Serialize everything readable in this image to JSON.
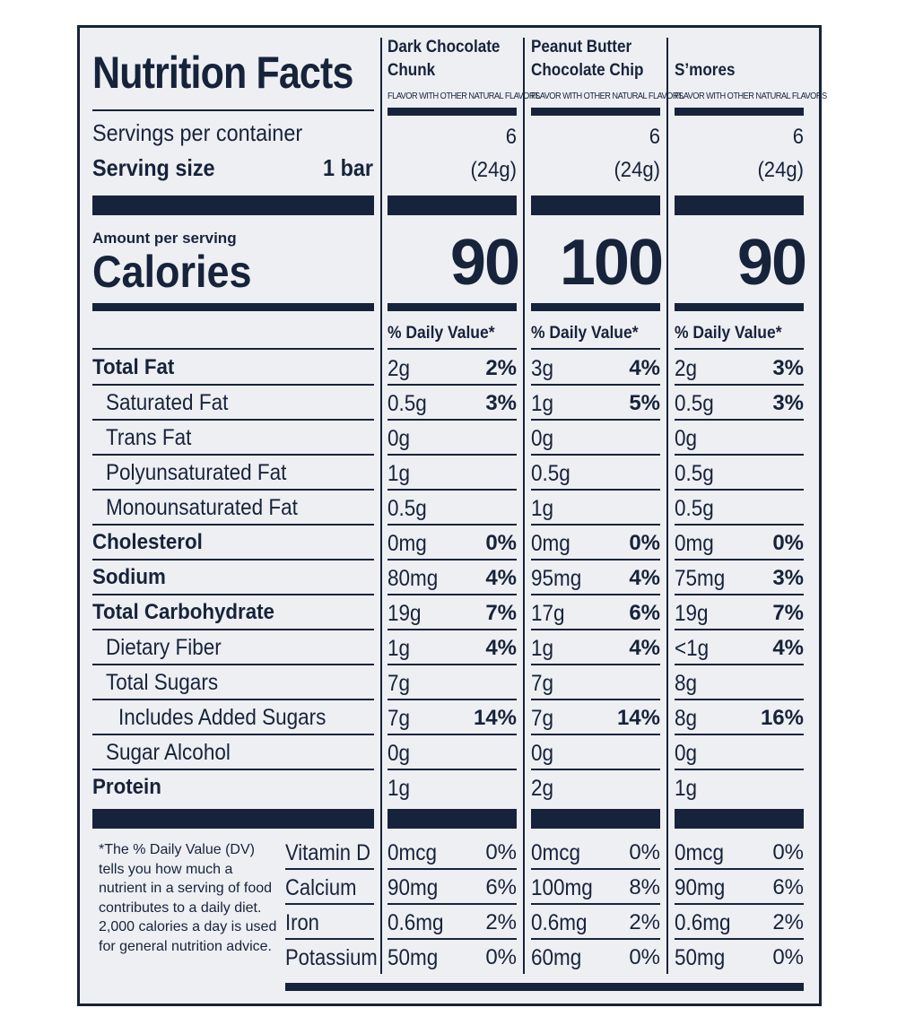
{
  "header": {
    "title": "Nutrition Facts",
    "servings_label": "Servings per container",
    "serving_size_label": "Serving size",
    "serving_size_value": "1 bar",
    "amount_per_serving": "Amount per serving",
    "calories_label": "Calories",
    "daily_value_header": "% Daily Value*"
  },
  "products": [
    {
      "line1": "Dark Chocolate",
      "line2": "Chunk",
      "flavor_note": "FLAVOR WITH OTHER NATURAL FLAVORS",
      "servings": "6",
      "serving_grams": "(24g)",
      "calories": "90"
    },
    {
      "line1": "Peanut Butter",
      "line2": "Chocolate Chip",
      "flavor_note": "FLAVOR WITH OTHER NATURAL FLAVORS",
      "servings": "6",
      "serving_grams": "(24g)",
      "calories": "100"
    },
    {
      "line1": "",
      "line2": "S’mores",
      "flavor_note": "FLAVOR WITH OTHER NATURAL FLAVORS",
      "servings": "6",
      "serving_grams": "(24g)",
      "calories": "90"
    }
  ],
  "nutrients": [
    {
      "label": "Total Fat",
      "bold": true,
      "indent": 0,
      "values": [
        [
          "2g",
          "2%"
        ],
        [
          "3g",
          "4%"
        ],
        [
          "2g",
          "3%"
        ]
      ]
    },
    {
      "label": "Saturated Fat",
      "bold": false,
      "indent": 1,
      "values": [
        [
          "0.5g",
          "3%"
        ],
        [
          "1g",
          "5%"
        ],
        [
          "0.5g",
          "3%"
        ]
      ]
    },
    {
      "label": "Trans Fat",
      "bold": false,
      "indent": 1,
      "values": [
        [
          "0g",
          ""
        ],
        [
          "0g",
          ""
        ],
        [
          "0g",
          ""
        ]
      ]
    },
    {
      "label": "Polyunsaturated Fat",
      "bold": false,
      "indent": 1,
      "values": [
        [
          "1g",
          ""
        ],
        [
          "0.5g",
          ""
        ],
        [
          "0.5g",
          ""
        ]
      ]
    },
    {
      "label": "Monounsaturated Fat",
      "bold": false,
      "indent": 1,
      "values": [
        [
          "0.5g",
          ""
        ],
        [
          "1g",
          ""
        ],
        [
          "0.5g",
          ""
        ]
      ]
    },
    {
      "label": "Cholesterol",
      "bold": true,
      "indent": 0,
      "values": [
        [
          "0mg",
          "0%"
        ],
        [
          "0mg",
          "0%"
        ],
        [
          "0mg",
          "0%"
        ]
      ]
    },
    {
      "label": "Sodium",
      "bold": true,
      "indent": 0,
      "values": [
        [
          "80mg",
          "4%"
        ],
        [
          "95mg",
          "4%"
        ],
        [
          "75mg",
          "3%"
        ]
      ]
    },
    {
      "label": "Total Carbohydrate",
      "bold": true,
      "indent": 0,
      "values": [
        [
          "19g",
          "7%"
        ],
        [
          "17g",
          "6%"
        ],
        [
          "19g",
          "7%"
        ]
      ]
    },
    {
      "label": "Dietary Fiber",
      "bold": false,
      "indent": 1,
      "values": [
        [
          "1g",
          "4%"
        ],
        [
          "1g",
          "4%"
        ],
        [
          "<1g",
          "4%"
        ]
      ]
    },
    {
      "label": "Total Sugars",
      "bold": false,
      "indent": 1,
      "values": [
        [
          "7g",
          ""
        ],
        [
          "7g",
          ""
        ],
        [
          "8g",
          ""
        ]
      ]
    },
    {
      "label": "Includes Added Sugars",
      "bold": false,
      "indent": 2,
      "values": [
        [
          "7g",
          "14%"
        ],
        [
          "7g",
          "14%"
        ],
        [
          "8g",
          "16%"
        ]
      ]
    },
    {
      "label": "Sugar Alcohol",
      "bold": false,
      "indent": 1,
      "values": [
        [
          "0g",
          ""
        ],
        [
          "0g",
          ""
        ],
        [
          "0g",
          ""
        ]
      ]
    },
    {
      "label": "Protein",
      "bold": true,
      "indent": 0,
      "values": [
        [
          "1g",
          ""
        ],
        [
          "2g",
          ""
        ],
        [
          "1g",
          ""
        ]
      ]
    }
  ],
  "vitamins": [
    {
      "label": "Vitamin D",
      "values": [
        [
          "0mcg",
          "0%"
        ],
        [
          "0mcg",
          "0%"
        ],
        [
          "0mcg",
          "0%"
        ]
      ]
    },
    {
      "label": "Calcium",
      "values": [
        [
          "90mg",
          "6%"
        ],
        [
          "100mg",
          "8%"
        ],
        [
          "90mg",
          "6%"
        ]
      ]
    },
    {
      "label": "Iron",
      "values": [
        [
          "0.6mg",
          "2%"
        ],
        [
          "0.6mg",
          "2%"
        ],
        [
          "0.6mg",
          "2%"
        ]
      ]
    },
    {
      "label": "Potassium",
      "values": [
        [
          "50mg",
          "0%"
        ],
        [
          "60mg",
          "0%"
        ],
        [
          "50mg",
          "0%"
        ]
      ]
    }
  ],
  "footnote": "*The % Daily Value (DV) tells you how much a nutrient in a serving of food contributes to a daily diet. 2,000 calories a day is used for general nutrition advice."
}
